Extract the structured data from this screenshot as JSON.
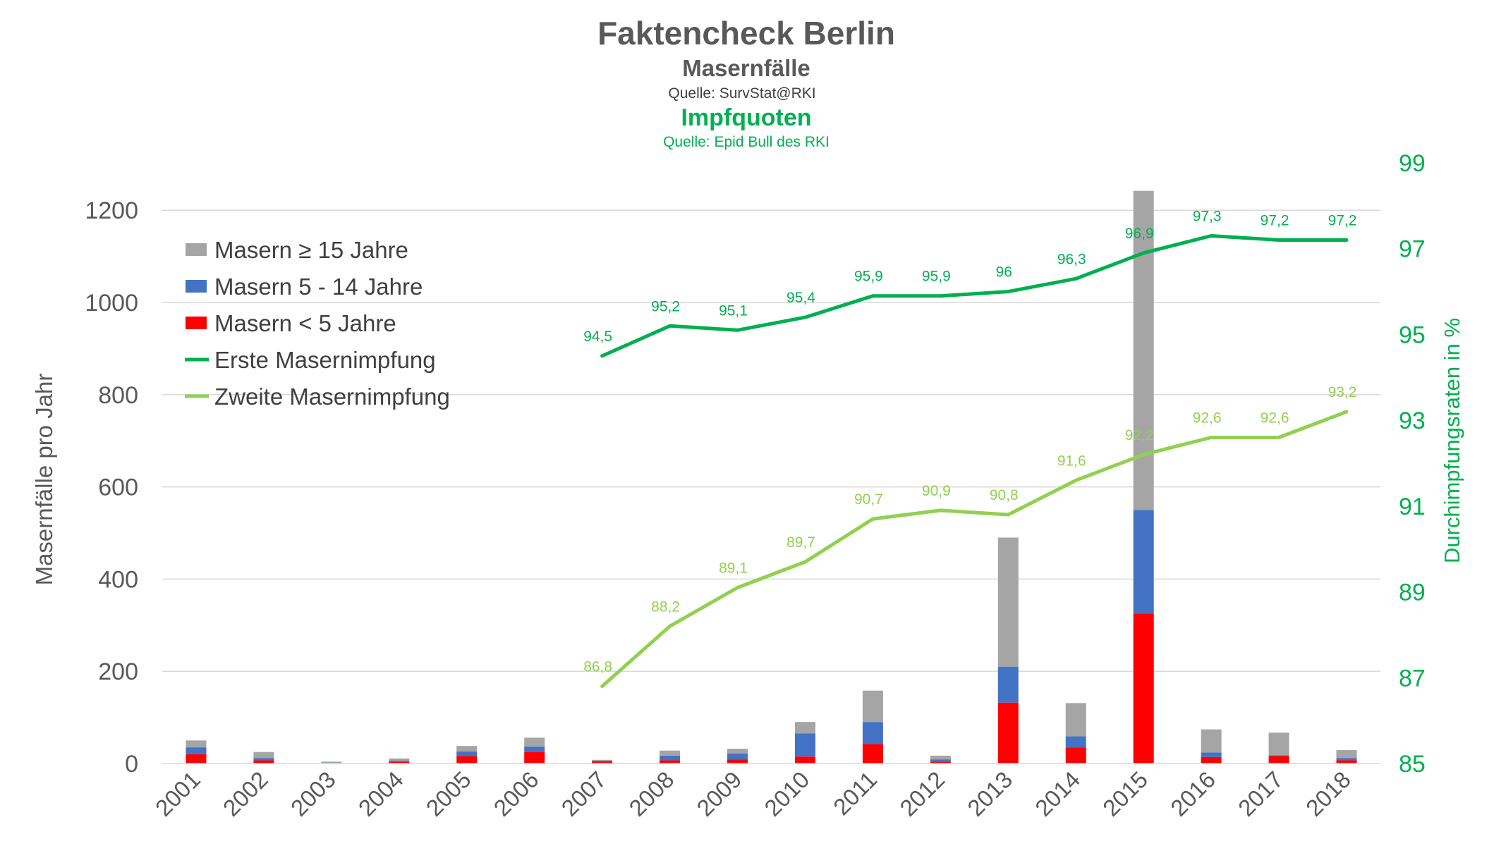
{
  "chart_data": {
    "type": "bar",
    "title": "Faktencheck Berlin",
    "subtitle": "Masernfälle",
    "source1": "Quelle: SurvStat@RKI",
    "subtitle2": "Impfquoten",
    "source2": "Quelle: Epid Bull des RKI",
    "ylabel": "Masernfälle pro Jahr",
    "y2label": "Durchimpfungsraten in %",
    "ylim": [
      0,
      1300
    ],
    "yticks": [
      "0",
      "200",
      "400",
      "600",
      "800",
      "1000",
      "1200"
    ],
    "y2lim": [
      85,
      99
    ],
    "y2ticks": [
      "85",
      "87",
      "89",
      "91",
      "93",
      "95",
      "97",
      "99"
    ],
    "grid": true,
    "legend_position": "top-left",
    "categories": [
      "2001",
      "2002",
      "2003",
      "2004",
      "2005",
      "2006",
      "2007",
      "2008",
      "2009",
      "2010",
      "2011",
      "2012",
      "2013",
      "2014",
      "2015",
      "2016",
      "2017",
      "2018"
    ],
    "bar_series": [
      {
        "name": "Masern < 5 Jahre",
        "color": "#ff0000",
        "stack_order": 0,
        "values": [
          20,
          7,
          1,
          4,
          16,
          25,
          5,
          7,
          9,
          15,
          42,
          4,
          132,
          35,
          325,
          14,
          16,
          7
        ]
      },
      {
        "name": "Masern 5 - 14 Jahre",
        "color": "#4472c4",
        "stack_order": 1,
        "values": [
          15,
          5,
          1,
          2,
          10,
          12,
          1,
          10,
          13,
          50,
          48,
          5,
          78,
          24,
          225,
          10,
          2,
          5
        ]
      },
      {
        "name": "Masern ≥ 15 Jahre",
        "color": "#a5a5a5",
        "stack_order": 2,
        "values": [
          15,
          13,
          2,
          5,
          12,
          19,
          2,
          11,
          10,
          25,
          68,
          8,
          280,
          72,
          692,
          50,
          49,
          17
        ]
      }
    ],
    "line_series": [
      {
        "name": "Erste Masernimpfung",
        "color": "#00b050",
        "axis": "right",
        "values": [
          null,
          null,
          null,
          null,
          null,
          null,
          94.5,
          95.2,
          95.1,
          95.4,
          95.9,
          95.9,
          96,
          96.3,
          96.9,
          97.3,
          97.2,
          97.2
        ],
        "labels": [
          "",
          "",
          "",
          "",
          "",
          "",
          "94,5",
          "95,2",
          "95,1",
          "95,4",
          "95,9",
          "95,9",
          "96",
          "96,3",
          "96,9",
          "97,3",
          "97,2",
          "97,2"
        ]
      },
      {
        "name": "Zweite Masernimpfung",
        "color": "#92d050",
        "axis": "right",
        "values": [
          null,
          null,
          null,
          null,
          null,
          null,
          86.8,
          88.2,
          89.1,
          89.7,
          90.7,
          90.9,
          90.8,
          91.6,
          92.2,
          92.6,
          92.6,
          93.2
        ],
        "labels": [
          "",
          "",
          "",
          "",
          "",
          "",
          "86,8",
          "88,2",
          "89,1",
          "89,7",
          "90,7",
          "90,9",
          "90,8",
          "91,6",
          "92,2",
          "92,6",
          "92,6",
          "93,2"
        ]
      }
    ],
    "legend": [
      {
        "label": "Masern ≥ 15 Jahre",
        "color": "#a5a5a5",
        "kind": "box"
      },
      {
        "label": "Masern 5 - 14 Jahre",
        "color": "#4472c4",
        "kind": "box"
      },
      {
        "label": "Masern < 5 Jahre",
        "color": "#ff0000",
        "kind": "box"
      },
      {
        "label": "Erste Masernimpfung",
        "color": "#00b050",
        "kind": "line"
      },
      {
        "label": "Zweite Masernimpfung",
        "color": "#92d050",
        "kind": "line"
      }
    ]
  }
}
